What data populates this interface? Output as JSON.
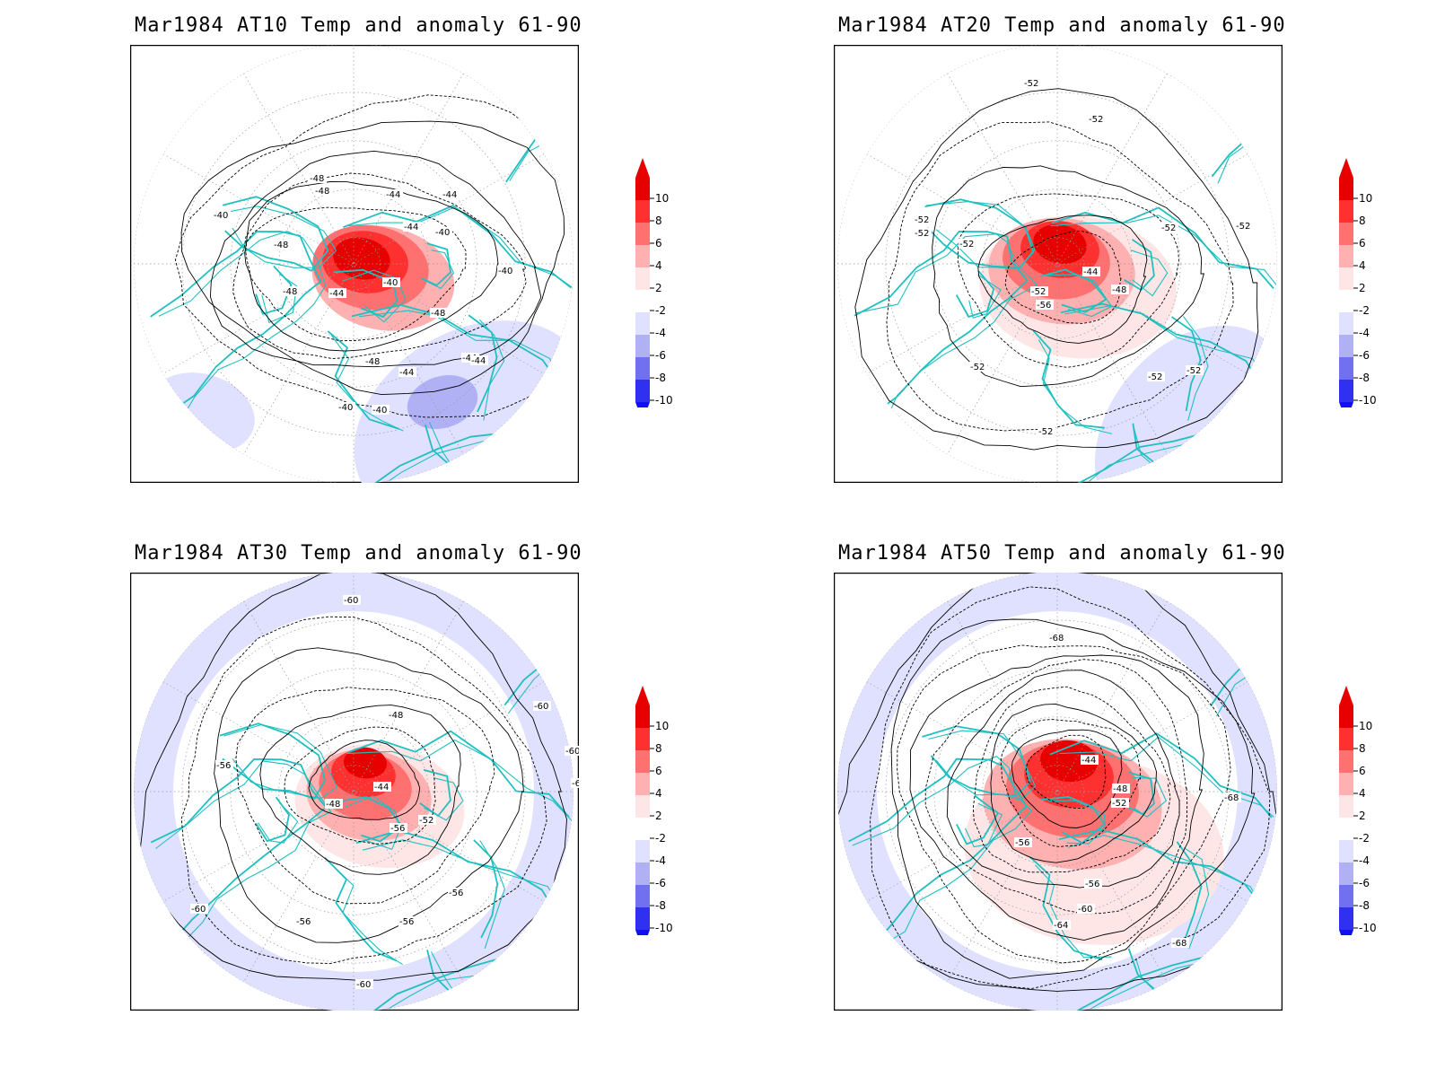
{
  "colors": {
    "coastline": "#20c0c0",
    "contour": "#000000",
    "grid": "#999999",
    "neutral": "#ffffff"
  },
  "colorbar": {
    "levels": [
      {
        "label": "10",
        "color": "#e60000"
      },
      {
        "label": "8",
        "color": "#ff3030"
      },
      {
        "label": "6",
        "color": "#ff7070"
      },
      {
        "label": "4",
        "color": "#ffb0b0"
      },
      {
        "label": "2",
        "color": "#ffe6e6"
      },
      {
        "label": "-2",
        "color": "#ffffff"
      },
      {
        "label": "-4",
        "color": "#e0e0ff"
      },
      {
        "label": "-6",
        "color": "#b0b0f5"
      },
      {
        "label": "-8",
        "color": "#7070f0"
      },
      {
        "label": "-10",
        "color": "#3030f0"
      }
    ],
    "top_arrow_color": "#e60000",
    "bottom_arrow_color": "#1010f0"
  },
  "panels": [
    {
      "title": "Mar1984 AT10 Temp and anomaly 61-90",
      "contour_labels": [
        "-48",
        "-48",
        "-44",
        "-44",
        "-40",
        "-48",
        "-44",
        "-40",
        "-48",
        "-44",
        "-40",
        "-40",
        "-44",
        "-48",
        "-44",
        "-48",
        "-44",
        "-40",
        "-40"
      ],
      "anomaly_blobs": [
        {
          "color": "#ffb0b0"
        },
        {
          "color": "#ff7070"
        },
        {
          "color": "#ff3030"
        },
        {
          "color": "#e60000"
        },
        {
          "color": "#e0e0ff"
        },
        {
          "color": "#b0b0f5"
        },
        {
          "color": "#e0e0ff"
        }
      ]
    },
    {
      "title": "Mar1984 AT20 Temp and anomaly 61-90",
      "contour_labels": [
        "-52",
        "-52",
        "-52",
        "-52",
        "-52",
        "-44",
        "-52",
        "-56",
        "-48",
        "-52",
        "-52",
        "-52",
        "-52",
        "-52",
        "-52"
      ],
      "anomaly_blobs": [
        {
          "color": "#ffe6e6"
        },
        {
          "color": "#ffb0b0"
        },
        {
          "color": "#ff7070"
        },
        {
          "color": "#ff3030"
        },
        {
          "color": "#e60000"
        },
        {
          "color": "#e0e0ff"
        },
        {
          "color": "#e0e0ff"
        },
        {
          "color": "#e0e0ff"
        }
      ]
    },
    {
      "title": "Mar1984 AT30 Temp and anomaly 61-90",
      "contour_labels": [
        "-60",
        "-48",
        "-56",
        "-44",
        "-48",
        "-52",
        "-56",
        "-56",
        "-56",
        "-56",
        "-60",
        "-60",
        "-60",
        "-60",
        "-60"
      ],
      "anomaly_blobs": [
        {
          "color": "#ffe6e6"
        },
        {
          "color": "#ffb0b0"
        },
        {
          "color": "#ff7070"
        },
        {
          "color": "#ff3030"
        },
        {
          "color": "#e60000"
        },
        {
          "color": "#e0e0ff"
        }
      ]
    },
    {
      "title": "Mar1984 AT50 Temp and anomaly 61-90",
      "contour_labels": [
        "-68",
        "-44",
        "-48",
        "-52",
        "-56",
        "-56",
        "-60",
        "-64",
        "-68",
        "-68"
      ],
      "anomaly_blobs": [
        {
          "color": "#ffe6e6"
        },
        {
          "color": "#ffb0b0"
        },
        {
          "color": "#ff7070"
        },
        {
          "color": "#ff3030"
        },
        {
          "color": "#e60000"
        },
        {
          "color": "#e0e0ff"
        }
      ]
    }
  ]
}
